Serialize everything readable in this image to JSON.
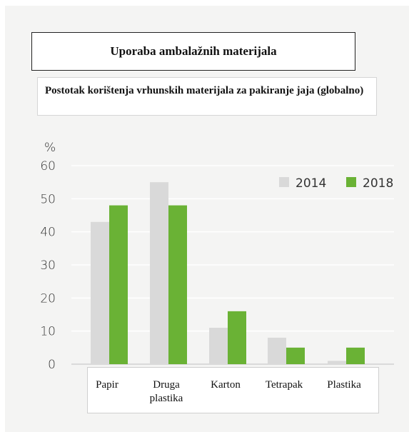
{
  "title": "Uporaba ambalažnih materijala",
  "subtitle": "Postotak korištenja vrhunskih materijala za pakiranje jaja (globalno)",
  "chart_data": {
    "type": "bar",
    "ylabel": "%",
    "ylim": [
      0,
      60
    ],
    "yticks": [
      0,
      10,
      20,
      30,
      40,
      50,
      60
    ],
    "grid": true,
    "legend_position": "top-right",
    "categories": [
      [
        "Papir"
      ],
      [
        "Druga",
        "plastika"
      ],
      [
        "Karton"
      ],
      [
        "Tetrapak"
      ],
      [
        "Plastika"
      ]
    ],
    "series": [
      {
        "name": "2014",
        "color": "#d9d9d9",
        "values": [
          43,
          55,
          11,
          8,
          1
        ]
      },
      {
        "name": "2018",
        "color": "#6ab235",
        "values": [
          48,
          48,
          16,
          5,
          5
        ]
      }
    ]
  }
}
